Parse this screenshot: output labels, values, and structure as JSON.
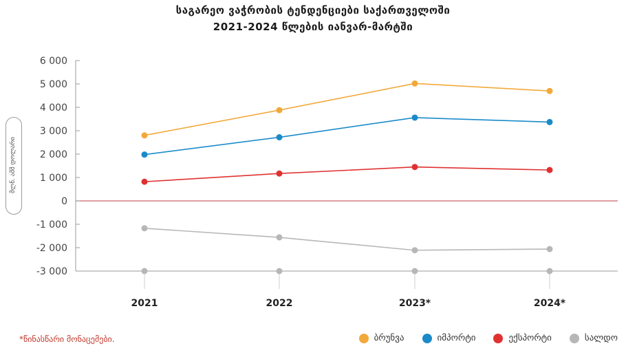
{
  "title_line1": "საგარეო  ვაჭრობის ტენდენციები საქართველოში",
  "title_line2": "2021-2024 წლების იანვარ-მარტში",
  "unit_label": "მლნ. აშშ დოლარი",
  "footnote": "*წინასწარი მონაცემები.",
  "colors": {
    "turnover": "#f2a93b",
    "import": "#1b8ac9",
    "export": "#e03131",
    "balance": "#b7b7b7",
    "zero_line": "#c9646a",
    "axis": "#9a9a9a"
  },
  "chart_data": {
    "type": "line",
    "categories": [
      "2021",
      "2022",
      "2023*",
      "2024*"
    ],
    "ylim": [
      -3000,
      6000
    ],
    "yticks": [
      6000,
      5000,
      4000,
      3000,
      2000,
      1000,
      0,
      -1000,
      -2000,
      -3000
    ],
    "ytick_labels": [
      "6 000",
      "5 000",
      "4 000",
      "3 000",
      "2 000",
      "1 000",
      "0",
      "-1 000",
      "-2 000",
      "-3 000"
    ],
    "series": [
      {
        "key": "turnover",
        "name": "ბრუნვა",
        "values": [
          2800,
          3880,
          5020,
          4700
        ]
      },
      {
        "key": "import",
        "name": "იმპორტი",
        "values": [
          1980,
          2720,
          3560,
          3370
        ]
      },
      {
        "key": "export",
        "name": "ექსპორტი",
        "values": [
          820,
          1170,
          1450,
          1320
        ]
      },
      {
        "key": "balance",
        "name": "სალდო",
        "values": [
          -1170,
          -1560,
          -2110,
          -2060
        ]
      }
    ]
  }
}
